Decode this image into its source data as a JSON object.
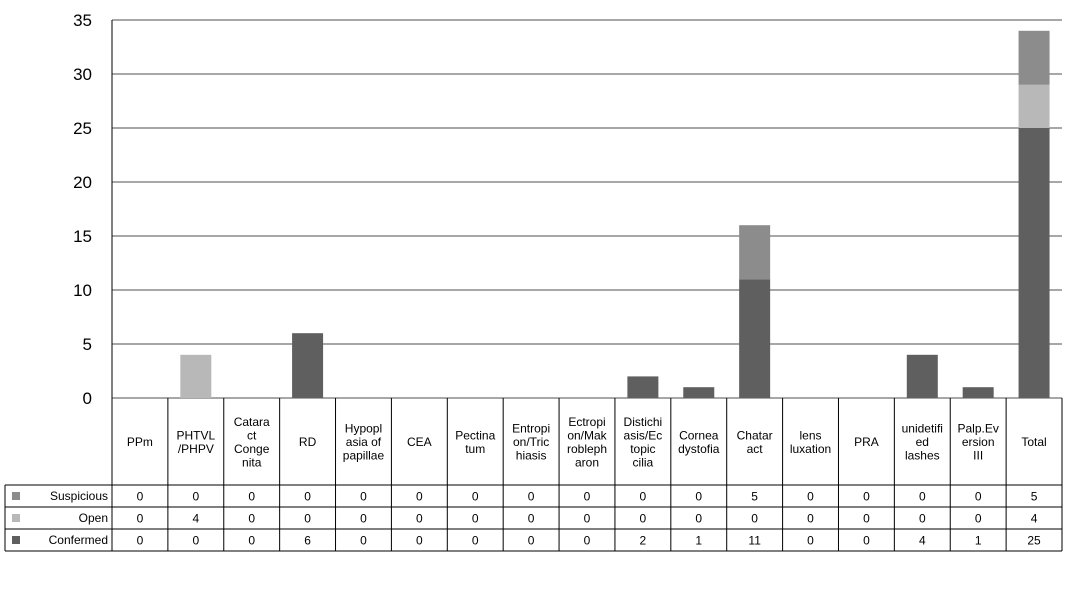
{
  "chart_data": {
    "type": "bar",
    "stacked": true,
    "ylim": [
      0,
      35
    ],
    "yticks": [
      0,
      5,
      10,
      15,
      20,
      25,
      30,
      35
    ],
    "grid": true,
    "legend_placement": "left, in data table",
    "categories": [
      [
        "PPm"
      ],
      [
        "PHTVL",
        "/PHPV"
      ],
      [
        "Catara",
        "ct",
        "Conge",
        "nita"
      ],
      [
        "RD"
      ],
      [
        "Hypopl",
        "asia of",
        "papillae"
      ],
      [
        "CEA"
      ],
      [
        "Pectina",
        "tum"
      ],
      [
        "Entropi",
        "on/Tric",
        "hiasis"
      ],
      [
        "Ectropi",
        "on/Mak",
        "robleph",
        "aron"
      ],
      [
        "Distichi",
        "asis/Ec",
        "topic",
        "cilia"
      ],
      [
        "Cornea",
        "dystofia"
      ],
      [
        "Chatar",
        "act"
      ],
      [
        "lens",
        "luxation"
      ],
      [
        "PRA"
      ],
      [
        "unidetifi",
        "ed",
        "lashes"
      ],
      [
        "Palp.Ev",
        "ersion",
        "III"
      ],
      [
        "Total"
      ]
    ],
    "series": [
      {
        "name": "Suspicious",
        "color": "#8c8c8c",
        "values": [
          0,
          0,
          0,
          0,
          0,
          0,
          0,
          0,
          0,
          0,
          0,
          5,
          0,
          0,
          0,
          0,
          5
        ]
      },
      {
        "name": "Open",
        "color": "#b8b8b8",
        "values": [
          0,
          4,
          0,
          0,
          0,
          0,
          0,
          0,
          0,
          0,
          0,
          0,
          0,
          0,
          0,
          0,
          4
        ]
      },
      {
        "name": "Confermed",
        "color": "#5f5f5f",
        "values": [
          0,
          0,
          0,
          6,
          0,
          0,
          0,
          0,
          0,
          2,
          1,
          11,
          0,
          0,
          4,
          1,
          25
        ]
      }
    ],
    "stack_order_bottom_to_top": [
      "Confermed",
      "Open",
      "Suspicious"
    ]
  }
}
